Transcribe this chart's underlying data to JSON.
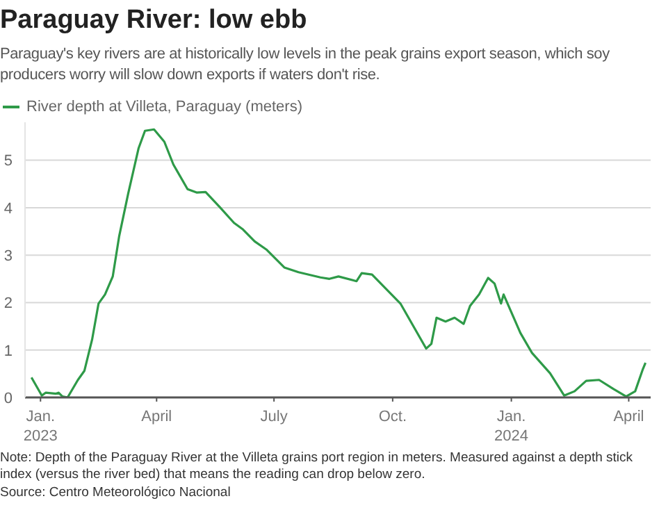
{
  "chart_data": {
    "type": "line",
    "title": "Paraguay River: low ebb",
    "subtitle": "Paraguay's key rivers are at historically low levels in the peak grains export season, which soy producers worry will slow down exports if waters don't rise.",
    "x": [
      "2022-12-25",
      "2023-01-02",
      "2023-01-05",
      "2023-01-13",
      "2023-01-15",
      "2023-01-18",
      "2023-01-22",
      "2023-01-30",
      "2023-02-04",
      "2023-02-10",
      "2023-02-15",
      "2023-02-20",
      "2023-02-26",
      "2023-03-03",
      "2023-03-10",
      "2023-03-18",
      "2023-03-23",
      "2023-03-30",
      "2023-04-07",
      "2023-04-14",
      "2023-04-25",
      "2023-05-02",
      "2023-05-09",
      "2023-05-20",
      "2023-05-31",
      "2023-06-07",
      "2023-06-16",
      "2023-06-25",
      "2023-07-09",
      "2023-07-20",
      "2023-08-06",
      "2023-08-13",
      "2023-08-20",
      "2023-09-03",
      "2023-09-07",
      "2023-09-15",
      "2023-10-07",
      "2023-10-19",
      "2023-10-27",
      "2023-10-31",
      "2023-11-04",
      "2023-11-11",
      "2023-11-18",
      "2023-11-25",
      "2023-11-30",
      "2023-12-07",
      "2023-12-14",
      "2023-12-19",
      "2023-12-24",
      "2023-12-26",
      "2024-01-08",
      "2024-01-17",
      "2024-01-31",
      "2024-02-11",
      "2024-02-19",
      "2024-02-28",
      "2024-03-09",
      "2024-03-20",
      "2024-03-30",
      "2024-04-06",
      "2024-04-12",
      "2024-04-14"
    ],
    "series": [
      {
        "name": "River depth at Villeta, Paraguay (meters)",
        "color": "#2e9a48",
        "values": [
          0.42,
          0.04,
          0.1,
          0.08,
          0.1,
          0.02,
          0.0,
          0.37,
          0.56,
          1.22,
          1.98,
          2.17,
          2.55,
          3.4,
          4.3,
          5.25,
          5.62,
          5.65,
          5.39,
          4.91,
          4.39,
          4.32,
          4.33,
          4.01,
          3.68,
          3.54,
          3.29,
          3.12,
          2.74,
          2.64,
          2.53,
          2.5,
          2.55,
          2.45,
          2.62,
          2.59,
          1.98,
          1.41,
          1.03,
          1.13,
          1.68,
          1.6,
          1.68,
          1.55,
          1.93,
          2.17,
          2.52,
          2.4,
          1.98,
          2.17,
          1.36,
          0.94,
          0.51,
          0.04,
          0.13,
          0.35,
          0.37,
          0.18,
          0.02,
          0.13,
          0.6,
          0.73
        ]
      }
    ],
    "xlim": [
      "2022-12-20",
      "2024-04-18"
    ],
    "xticks": [
      {
        "value": "2023-01-01",
        "label": "Jan.\n2023"
      },
      {
        "value": "2023-04-01",
        "label": "April"
      },
      {
        "value": "2023-07-01",
        "label": "July"
      },
      {
        "value": "2023-10-01",
        "label": "Oct."
      },
      {
        "value": "2024-01-01",
        "label": "Jan.\n2024"
      },
      {
        "value": "2024-04-01",
        "label": "April"
      }
    ],
    "ylim": [
      0,
      5.8
    ],
    "yticks": [
      0,
      1,
      2,
      3,
      4,
      5
    ],
    "grid": "y",
    "legend": "top left",
    "marker": "none",
    "line_style": "solid",
    "annotations": [
      "Note: Depth of the Paraguay River at the Villeta grains port region in meters. Measured against a depth stick index (versus the river bed) that means the reading can drop below zero.",
      "Source: Centro Meteorológico Nacional"
    ]
  }
}
